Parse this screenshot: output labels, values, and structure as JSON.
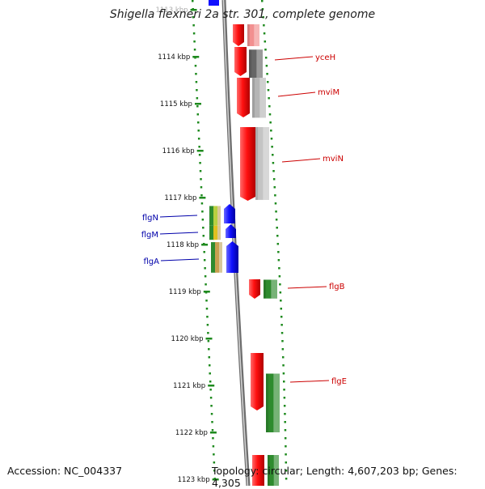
{
  "title": "Shigella flexneri 2a str. 301, complete genome",
  "footer": {
    "accession": "Accession: NC_004337",
    "summary": "Topology: circular; Length: 4,607,203 bp; Genes: 4,305"
  },
  "colors": {
    "backbone": "#8a8a8a",
    "tick": "#1e8a1e",
    "label_forward": "#cc0000",
    "label_reverse": "#0000aa"
  },
  "ruler_labels": [
    "1113 kbp",
    "1114 kbp",
    "1115 kbp",
    "1116 kbp",
    "1117 kbp",
    "1118 kbp",
    "1119 kbp",
    "1120 kbp",
    "1121 kbp",
    "1122 kbp",
    "1123 kbp"
  ],
  "genes": [
    {
      "name": "yceH",
      "start_kbp": 1113.85,
      "end_kbp": 1114.45,
      "color": "#666666"
    },
    {
      "name": "mviM",
      "start_kbp": 1114.45,
      "end_kbp": 1115.3,
      "color": "#b5b5b5"
    },
    {
      "name": "mviN",
      "start_kbp": 1115.5,
      "end_kbp": 1117.05,
      "color": "#c4c4c4"
    },
    {
      "name": "flgN",
      "start_kbp": 1117.18,
      "end_kbp": 1117.6,
      "color": "#b8d040"
    },
    {
      "name": "flgM",
      "start_kbp": 1117.6,
      "end_kbp": 1117.9,
      "color": "#e0c020"
    },
    {
      "name": "flgA",
      "start_kbp": 1117.95,
      "end_kbp": 1118.6,
      "color": "#c8a050"
    },
    {
      "name": "flgB",
      "start_kbp": 1118.75,
      "end_kbp": 1119.15,
      "color": "#2e8b2e"
    },
    {
      "name": "flgE",
      "start_kbp": 1120.75,
      "end_kbp": 1122.0,
      "color": "#2e8b2e"
    }
  ]
}
